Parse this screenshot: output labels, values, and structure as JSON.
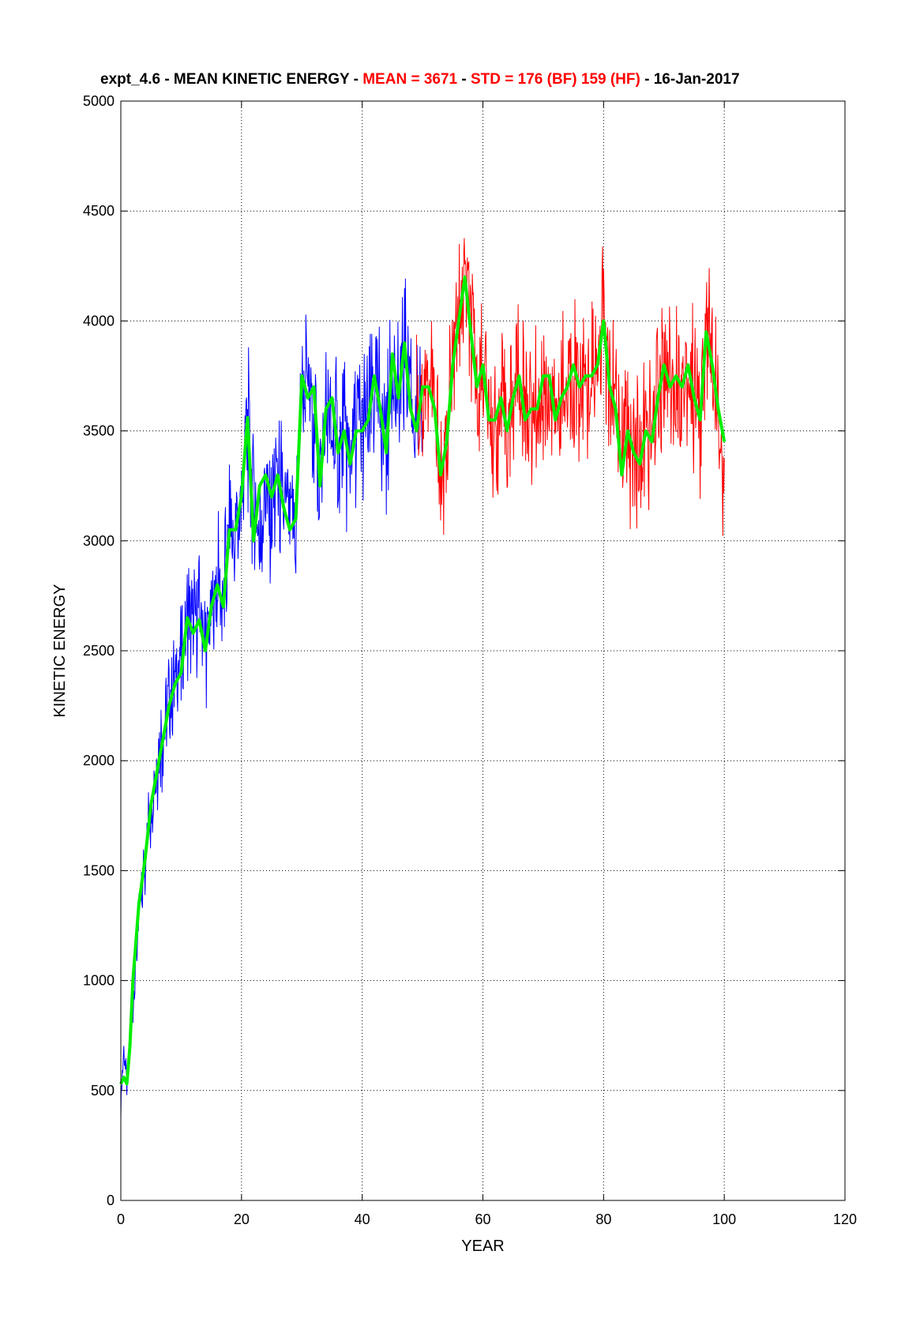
{
  "chart_data": {
    "type": "line",
    "title": {
      "prefix": "expt_4.6 - MEAN KINETIC ENERGY - ",
      "mean": "MEAN =  3671",
      "sep1": " - ",
      "std": "STD =  176 (BF)  159 (HF)",
      "suffix": " - 16-Jan-2017"
    },
    "xlabel": "YEAR",
    "ylabel": "KINETIC ENERGY",
    "xlim": [
      0,
      120
    ],
    "ylim": [
      0,
      5000
    ],
    "x_ticks": [
      "0",
      "20",
      "40",
      "60",
      "80",
      "100",
      "120"
    ],
    "y_ticks": [
      "0",
      "500",
      "1000",
      "1500",
      "2000",
      "2500",
      "3000",
      "3500",
      "4000",
      "4500",
      "5000"
    ],
    "grid": true,
    "colors": {
      "blue_series": "#0000ff",
      "red_series": "#ff0000",
      "smoothed": "#00ee00",
      "title_black": "#000000",
      "title_red": "#ff0000"
    },
    "series": [
      {
        "color": "#0000ff",
        "x": [
          0,
          0.5,
          1,
          2,
          3,
          4,
          5,
          6,
          7,
          8,
          9,
          10,
          11,
          12,
          13,
          14,
          15,
          16,
          17,
          18,
          19,
          20,
          21,
          22,
          23,
          24,
          25,
          26,
          27,
          28,
          29,
          30,
          31,
          32,
          33,
          34,
          35,
          36,
          37,
          38,
          39,
          40,
          41,
          42,
          43,
          44,
          45,
          46,
          47,
          48,
          49,
          50
        ],
        "y": [
          420,
          700,
          520,
          900,
          1300,
          1550,
          1800,
          2000,
          2100,
          2300,
          2350,
          2450,
          2700,
          2600,
          2650,
          2500,
          2650,
          2800,
          2750,
          3050,
          3000,
          3200,
          3550,
          3150,
          3000,
          3200,
          3150,
          3300,
          3150,
          3100,
          3050,
          3750,
          3650,
          3600,
          3300,
          3550,
          3500,
          3400,
          3450,
          3350,
          3500,
          3500,
          3550,
          3700,
          3600,
          3450,
          3850,
          3650,
          3800,
          3750,
          3500,
          3600
        ]
      },
      {
        "color": "#ff0000",
        "x": [
          49,
          50,
          51,
          52,
          53,
          54,
          55,
          56,
          57,
          58,
          59,
          60,
          61,
          62,
          63,
          64,
          65,
          66,
          67,
          68,
          69,
          70,
          71,
          72,
          73,
          74,
          75,
          76,
          77,
          78,
          79,
          80,
          81,
          82,
          83,
          84,
          85,
          86,
          87,
          88,
          89,
          90,
          91,
          92,
          93,
          94,
          95,
          96,
          97,
          98,
          99,
          100
        ],
        "y": [
          3600,
          3700,
          3750,
          3600,
          3250,
          3450,
          3800,
          4000,
          4250,
          4000,
          3750,
          3800,
          3550,
          3500,
          3650,
          3500,
          3650,
          3750,
          3600,
          3550,
          3600,
          3700,
          3750,
          3550,
          3650,
          3700,
          3800,
          3700,
          3750,
          3700,
          3800,
          4050,
          3700,
          3600,
          3350,
          3500,
          3400,
          3350,
          3500,
          3450,
          3650,
          3800,
          3700,
          3750,
          3650,
          3800,
          3650,
          3550,
          3950,
          3800,
          3600,
          3200
        ]
      },
      {
        "color": "#00ee00",
        "x": [
          0,
          0.5,
          1,
          1.5,
          2,
          3,
          4,
          5,
          6,
          7,
          8,
          9,
          10,
          11,
          12,
          13,
          14,
          15,
          16,
          17,
          18,
          19,
          20,
          21,
          22,
          23,
          24,
          25,
          26,
          27,
          28,
          29,
          30,
          31,
          32,
          33,
          34,
          35,
          36,
          37,
          38,
          39,
          40,
          41,
          42,
          43,
          44,
          45,
          46,
          47,
          48,
          49,
          50,
          51,
          52,
          53,
          54,
          55,
          56,
          57,
          58,
          59,
          60,
          61,
          62,
          63,
          64,
          65,
          66,
          67,
          68,
          69,
          70,
          71,
          72,
          73,
          74,
          75,
          76,
          77,
          78,
          79,
          80,
          81,
          82,
          83,
          84,
          85,
          86,
          87,
          88,
          89,
          90,
          91,
          92,
          93,
          94,
          95,
          96,
          97,
          98,
          99,
          100
        ],
        "y": [
          530,
          560,
          530,
          700,
          1000,
          1350,
          1550,
          1800,
          1950,
          2100,
          2250,
          2350,
          2400,
          2650,
          2580,
          2640,
          2500,
          2700,
          2800,
          2700,
          3050,
          3050,
          3200,
          3560,
          3000,
          3250,
          3300,
          3200,
          3300,
          3150,
          3050,
          3100,
          3750,
          3650,
          3700,
          3250,
          3600,
          3650,
          3400,
          3500,
          3350,
          3500,
          3500,
          3550,
          3750,
          3600,
          3400,
          3850,
          3650,
          3900,
          3600,
          3500,
          3700,
          3700,
          3600,
          3300,
          3450,
          3800,
          4000,
          4200,
          3950,
          3700,
          3800,
          3550,
          3550,
          3650,
          3500,
          3650,
          3750,
          3550,
          3600,
          3600,
          3750,
          3750,
          3550,
          3650,
          3700,
          3800,
          3700,
          3750,
          3750,
          3800,
          4000,
          3700,
          3600,
          3300,
          3500,
          3400,
          3350,
          3500,
          3450,
          3650,
          3800,
          3700,
          3750,
          3700,
          3800,
          3650,
          3550,
          3950,
          3800,
          3600,
          3450
        ]
      }
    ]
  }
}
